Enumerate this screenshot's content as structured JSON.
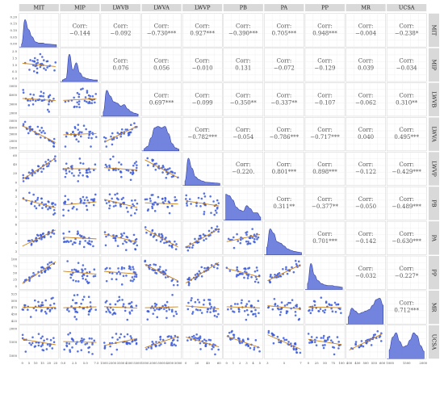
{
  "chart_data": {
    "type": "scatter",
    "variables": [
      "MIT",
      "MIP",
      "LWVB",
      "LWVA",
      "LWVP",
      "PB",
      "PA",
      "PP",
      "MR",
      "UCSA"
    ],
    "corr_label": "Corr:",
    "correlations": [
      {
        "row": "MIT",
        "col": "MIP",
        "r": -0.144,
        "text": "−0.144"
      },
      {
        "row": "MIT",
        "col": "LWVB",
        "r": -0.092,
        "text": "−0.092"
      },
      {
        "row": "MIT",
        "col": "LWVA",
        "r": -0.73,
        "text": "−0.730***"
      },
      {
        "row": "MIT",
        "col": "LWVP",
        "r": 0.927,
        "text": "0.927***"
      },
      {
        "row": "MIT",
        "col": "PB",
        "r": -0.39,
        "text": "−0.390***"
      },
      {
        "row": "MIT",
        "col": "PA",
        "r": 0.705,
        "text": "0.705***"
      },
      {
        "row": "MIT",
        "col": "PP",
        "r": 0.948,
        "text": "0.948***"
      },
      {
        "row": "MIT",
        "col": "MR",
        "r": -0.004,
        "text": "−0.004"
      },
      {
        "row": "MIT",
        "col": "UCSA",
        "r": -0.238,
        "text": "−0.238*"
      },
      {
        "row": "MIP",
        "col": "LWVB",
        "r": 0.076,
        "text": "0.076"
      },
      {
        "row": "MIP",
        "col": "LWVA",
        "r": 0.056,
        "text": "0.056"
      },
      {
        "row": "MIP",
        "col": "LWVP",
        "r": -0.01,
        "text": "−0.010"
      },
      {
        "row": "MIP",
        "col": "PB",
        "r": 0.131,
        "text": "0.131"
      },
      {
        "row": "MIP",
        "col": "PA",
        "r": -0.072,
        "text": "−0.072"
      },
      {
        "row": "MIP",
        "col": "PP",
        "r": -0.129,
        "text": "−0.129"
      },
      {
        "row": "MIP",
        "col": "MR",
        "r": 0.039,
        "text": "0.039"
      },
      {
        "row": "MIP",
        "col": "UCSA",
        "r": -0.034,
        "text": "−0.034"
      },
      {
        "row": "LWVB",
        "col": "LWVA",
        "r": 0.697,
        "text": "0.697***"
      },
      {
        "row": "LWVB",
        "col": "LWVP",
        "r": -0.099,
        "text": "−0.099"
      },
      {
        "row": "LWVB",
        "col": "PB",
        "r": -0.35,
        "text": "−0.350**"
      },
      {
        "row": "LWVB",
        "col": "PA",
        "r": -0.337,
        "text": "−0.337**"
      },
      {
        "row": "LWVB",
        "col": "PP",
        "r": -0.107,
        "text": "−0.107"
      },
      {
        "row": "LWVB",
        "col": "MR",
        "r": -0.062,
        "text": "−0.062"
      },
      {
        "row": "LWVB",
        "col": "UCSA",
        "r": 0.31,
        "text": "0.310**"
      },
      {
        "row": "LWVA",
        "col": "LWVP",
        "r": -0.782,
        "text": "−0.782***"
      },
      {
        "row": "LWVA",
        "col": "PB",
        "r": -0.054,
        "text": "−0.054"
      },
      {
        "row": "LWVA",
        "col": "PA",
        "r": -0.786,
        "text": "−0.786***"
      },
      {
        "row": "LWVA",
        "col": "PP",
        "r": -0.717,
        "text": "−0.717***"
      },
      {
        "row": "LWVA",
        "col": "MR",
        "r": 0.04,
        "text": "0.040"
      },
      {
        "row": "LWVA",
        "col": "UCSA",
        "r": 0.495,
        "text": "0.495***"
      },
      {
        "row": "LWVP",
        "col": "PB",
        "r": -0.22,
        "text": "−0.220."
      },
      {
        "row": "LWVP",
        "col": "PA",
        "r": 0.801,
        "text": "0.801***"
      },
      {
        "row": "LWVP",
        "col": "PP",
        "r": 0.898,
        "text": "0.898***"
      },
      {
        "row": "LWVP",
        "col": "MR",
        "r": -0.122,
        "text": "−0.122"
      },
      {
        "row": "LWVP",
        "col": "UCSA",
        "r": -0.429,
        "text": "−0.429***"
      },
      {
        "row": "PB",
        "col": "PA",
        "r": 0.311,
        "text": "0.311**"
      },
      {
        "row": "PB",
        "col": "PP",
        "r": -0.377,
        "text": "−0.377**"
      },
      {
        "row": "PB",
        "col": "MR",
        "r": -0.05,
        "text": "−0.050"
      },
      {
        "row": "PB",
        "col": "UCSA",
        "r": -0.489,
        "text": "−0.489***"
      },
      {
        "row": "PA",
        "col": "PP",
        "r": 0.701,
        "text": "0.701***"
      },
      {
        "row": "PA",
        "col": "MR",
        "r": -0.142,
        "text": "−0.142"
      },
      {
        "row": "PA",
        "col": "UCSA",
        "r": -0.63,
        "text": "−0.630***"
      },
      {
        "row": "PP",
        "col": "MR",
        "r": -0.032,
        "text": "−0.032"
      },
      {
        "row": "PP",
        "col": "UCSA",
        "r": -0.227,
        "text": "−0.227*"
      },
      {
        "row": "MR",
        "col": "UCSA",
        "r": 0.712,
        "text": "0.712***"
      }
    ],
    "y_ticks": {
      "MIT": [
        "0.20",
        "0.15",
        "0.10",
        "0.05",
        "0.00"
      ],
      "MIP": [
        "2.0",
        "1.5",
        "1.0",
        "0.5",
        "0.0"
      ],
      "LWVB": [
        "5000",
        "4000",
        "3000",
        "2000"
      ],
      "LWVA": [
        "5000",
        "4000",
        "3000",
        "2000",
        "1000"
      ],
      "LWVP": [
        "60",
        "40",
        "20",
        "0"
      ],
      "PB": [
        "4",
        "3",
        "2",
        "1",
        "0"
      ],
      "PA": [
        "6",
        "5",
        "4",
        "3"
      ],
      "PP": [
        "100",
        "75",
        "50",
        "25",
        "0"
      ],
      "MR": [
        "525",
        "500",
        "475",
        "450",
        "425"
      ],
      "UCSA": [
        "2000",
        "1500",
        "1000"
      ]
    },
    "x_ticks": {
      "MIT": [
        "0",
        "5",
        "10",
        "15",
        "20",
        "25"
      ],
      "MIP": [
        "0.0",
        "2.5",
        "5.0",
        "7.5"
      ],
      "LWVB": [
        "1500",
        "2500",
        "3500",
        "4500",
        "5500"
      ],
      "LWVA": [
        "1000",
        "2000",
        "3000",
        "4000",
        "5000"
      ],
      "LWVP": [
        "0",
        "20",
        "40",
        "60"
      ],
      "PB": [
        "0",
        "1",
        "2",
        "3",
        "4",
        "5"
      ],
      "PA": [
        "3",
        "5",
        "7"
      ],
      "PP": [
        "0",
        "25",
        "50",
        "75",
        "100"
      ],
      "MR": [
        "400",
        "450",
        "500",
        "550",
        "600"
      ],
      "UCSA": [
        "1000",
        "1500",
        "2000"
      ]
    },
    "density_shape": {
      "MIT": [
        0.05,
        0.9,
        0.55,
        0.3,
        0.12,
        0.08,
        0.08,
        0.05,
        0.04,
        0.03,
        0.02
      ],
      "MIP": [
        0.0,
        0.05,
        0.9,
        0.35,
        0.6,
        0.25,
        0.1,
        0.05,
        0.02,
        0.0,
        0.0
      ],
      "LWVB": [
        0.1,
        0.85,
        0.65,
        0.45,
        0.4,
        0.3,
        0.35,
        0.2,
        0.1,
        0.05,
        0.02
      ],
      "LWVA": [
        0.02,
        0.1,
        0.4,
        0.75,
        0.8,
        0.75,
        0.8,
        0.55,
        0.2,
        0.05,
        0.0
      ],
      "LWVP": [
        0.1,
        0.9,
        0.55,
        0.25,
        0.15,
        0.1,
        0.06,
        0.05,
        0.04,
        0.03,
        0.02
      ],
      "PB": [
        0.85,
        0.8,
        0.65,
        0.4,
        0.3,
        0.25,
        0.45,
        0.35,
        0.2,
        0.2,
        0.05
      ],
      "PA": [
        0.2,
        0.85,
        0.7,
        0.4,
        0.35,
        0.25,
        0.15,
        0.1,
        0.06,
        0.04,
        0.02
      ],
      "PP": [
        0.15,
        0.85,
        0.45,
        0.25,
        0.15,
        0.1,
        0.08,
        0.08,
        0.05,
        0.04,
        0.02
      ],
      "MR": [
        0.2,
        0.5,
        0.4,
        0.3,
        0.35,
        0.4,
        0.45,
        0.6,
        0.8,
        0.85,
        0.6
      ],
      "UCSA": [
        0.25,
        0.7,
        0.85,
        0.55,
        0.35,
        0.4,
        0.6,
        0.85,
        0.75,
        0.4,
        0.2
      ]
    },
    "point_color": "#3b5bdb",
    "fit_line_color": "#c8821e",
    "density_fill": "#5a6fd8",
    "panel_bg": "#ffffff",
    "strip_bg": "#d9d9d9",
    "grid": true
  }
}
